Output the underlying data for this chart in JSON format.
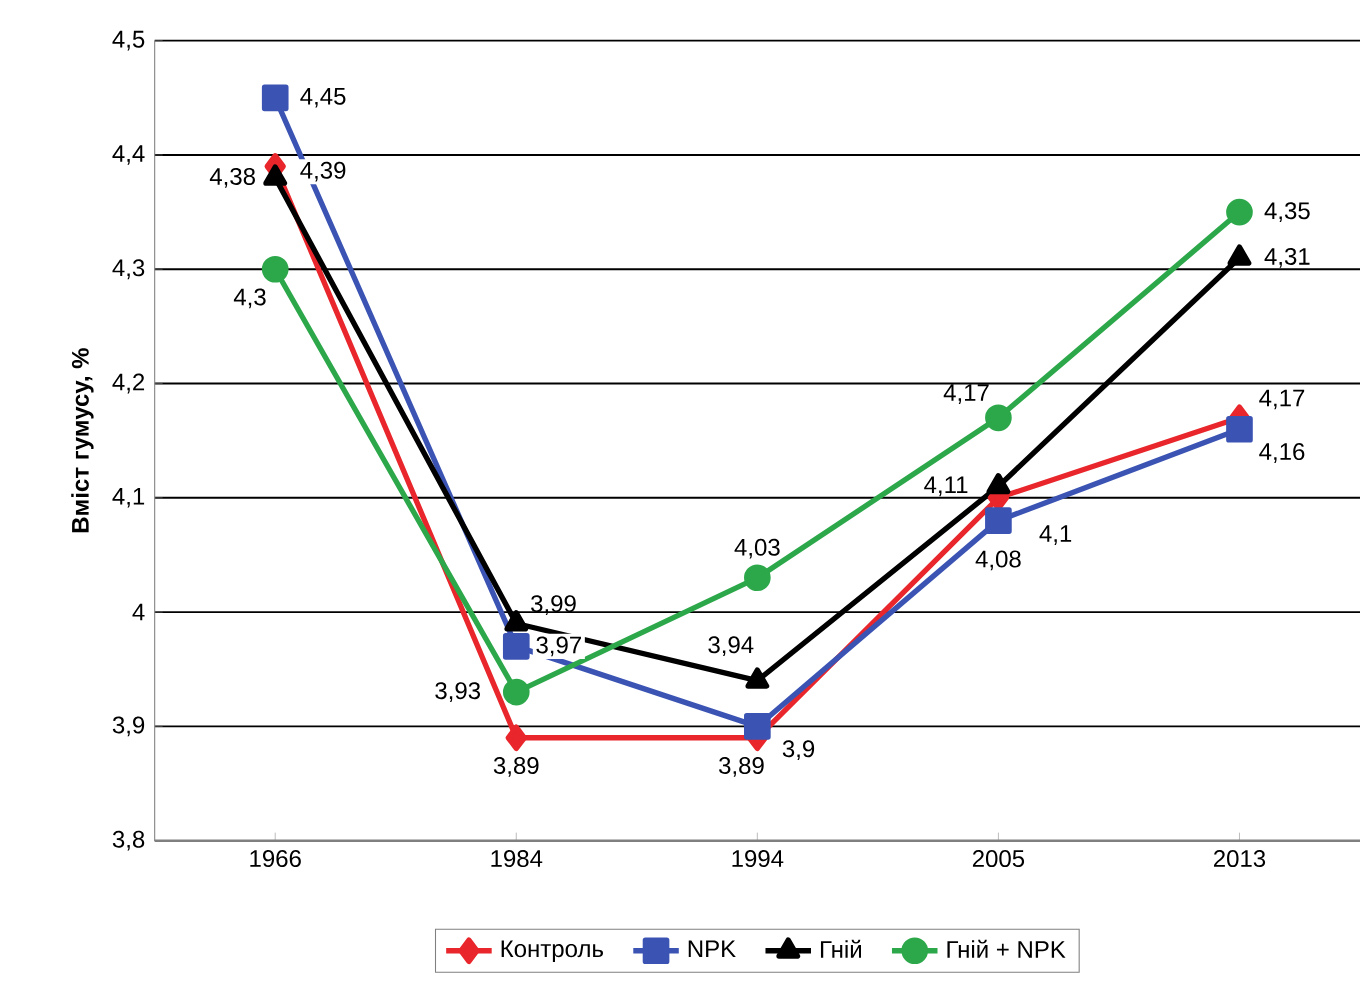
{
  "chart_data": {
    "type": "line",
    "ylabel": "Вміст гумусу, %",
    "categories": [
      "1966",
      "1984",
      "1994",
      "2005",
      "2013"
    ],
    "series": [
      {
        "name": "Контроль",
        "color": "#e8262b",
        "marker": "diamond",
        "values": [
          4.39,
          3.89,
          3.89,
          4.1,
          4.17
        ],
        "value_labels": [
          "4,39",
          "3,89",
          "3,89",
          "4,1",
          "4,17"
        ]
      },
      {
        "name": "NPK",
        "color": "#3b54b4",
        "marker": "square",
        "values": [
          4.45,
          3.97,
          3.9,
          4.08,
          4.16
        ],
        "value_labels": [
          "4,45",
          "3,97",
          "3,9",
          "4,08",
          "4,16"
        ]
      },
      {
        "name": "Гній",
        "color": "#000000",
        "marker": "triangle",
        "values": [
          4.38,
          3.99,
          3.94,
          4.11,
          4.31
        ],
        "value_labels": [
          "4,38",
          "3,99",
          "3,94",
          "4,11",
          "4,31"
        ]
      },
      {
        "name": "Гній + NPK",
        "color": "#2ca84a",
        "marker": "circle",
        "values": [
          4.3,
          3.93,
          4.03,
          4.17,
          4.35
        ],
        "value_labels": [
          "4,3",
          "3,93",
          "4,03",
          "4,17",
          "4,35"
        ]
      }
    ],
    "ylim": [
      3.8,
      4.5
    ],
    "yticks": [
      {
        "value": 3.8,
        "label": "3,8"
      },
      {
        "value": 3.9,
        "label": "3,9"
      },
      4,
      {
        "value": 4.1,
        "label": "4,1"
      },
      {
        "value": 4.2,
        "label": "4,2"
      },
      {
        "value": 4.3,
        "label": "4,3"
      },
      {
        "value": 4.4,
        "label": "4,4"
      },
      {
        "value": 4.5,
        "label": "4,5"
      }
    ],
    "grid": "y",
    "legend": "bottom",
    "line_style": "solid"
  }
}
